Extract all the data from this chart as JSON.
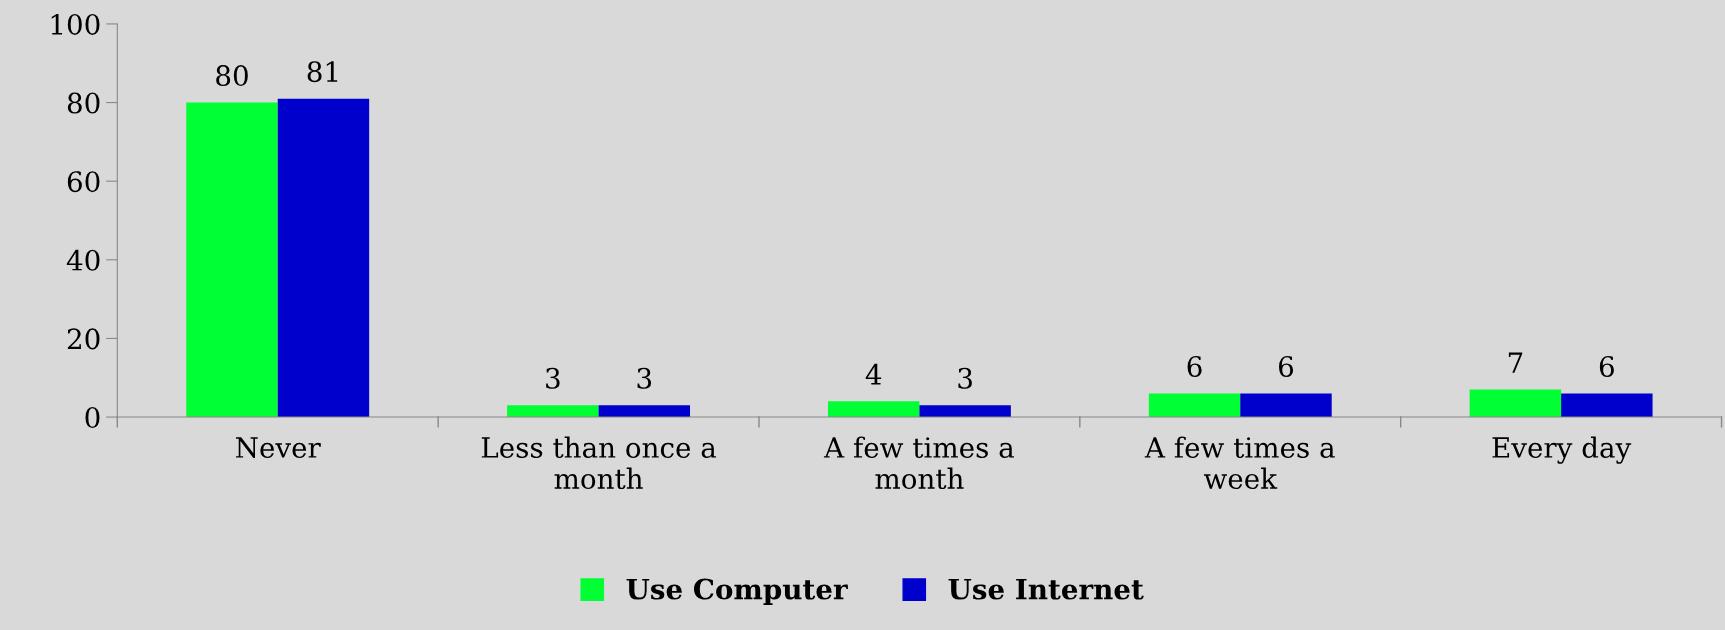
{
  "chart_data": {
    "type": "bar",
    "categories": [
      "Never",
      "Less than once a\nmonth",
      "A few times a\nmonth",
      "A few times a\nweek",
      "Every day"
    ],
    "series": [
      {
        "name": "Use Computer",
        "color": "#00ff33",
        "values": [
          80,
          3,
          4,
          6,
          7
        ]
      },
      {
        "name": "Use Internet",
        "color": "#0000cc",
        "values": [
          81,
          3,
          3,
          6,
          6
        ]
      }
    ],
    "ylim": [
      0,
      100
    ],
    "yticks": [
      0,
      20,
      40,
      60,
      80,
      100
    ],
    "grid": false,
    "legend": "bottom",
    "data_labels": true
  }
}
